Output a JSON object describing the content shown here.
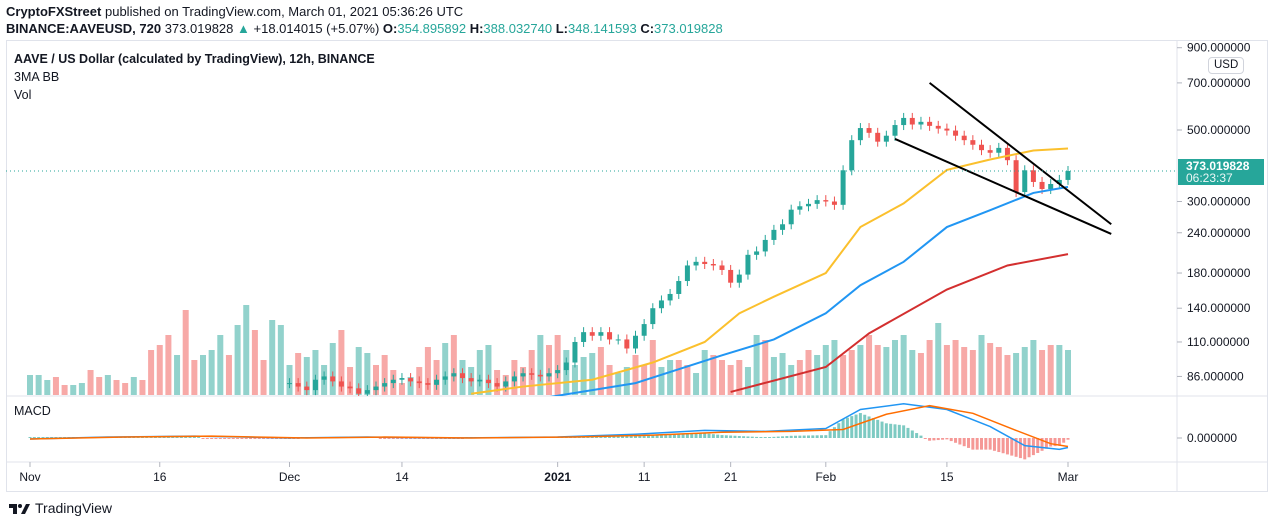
{
  "header": {
    "publisher": "CryptoFXStreet",
    "published_text": "published on TradingView.com, March 01, 2021 05:36:26 UTC",
    "symbol": "BINANCE:AAVEUSD, 720",
    "last": "373.019828",
    "change": "+18.014015 (+5.07%)",
    "o_label": "O:",
    "o": "354.895892",
    "h_label": "H:",
    "h": "388.032740",
    "l_label": "L:",
    "l": "348.141593",
    "c_label": "C:",
    "c": "373.019828"
  },
  "legend": {
    "title": "AAVE / US Dollar (calculated by TradingView), 12h, BINANCE",
    "indicator1": "3MA BB",
    "indicator2": "Vol",
    "macd": "MACD"
  },
  "price_axis": {
    "currency": "USD",
    "last_price": "373.019828",
    "countdown": "06:23:37"
  },
  "footer": {
    "brand": "TradingView"
  },
  "colors": {
    "up": "#26a69a",
    "down": "#ef5350",
    "ma_fast": "#fbc02d",
    "ma_mid": "#2196f3",
    "ma_slow": "#d32f2f",
    "macd": "#2196f3",
    "signal": "#ff6d00",
    "trendline": "#000000"
  },
  "chart_data": {
    "type": "candlestick",
    "scale": "log",
    "ylim": [
      60,
      920
    ],
    "y_ticks": [
      "900.000000",
      "700.000000",
      "500.000000",
      "300.000000",
      "240.000000",
      "180.000000",
      "140.000000",
      "110.000000",
      "86.000000"
    ],
    "y_tick_values": [
      900,
      700,
      500,
      300,
      240,
      180,
      140,
      110,
      86
    ],
    "x_ticks": [
      {
        "label": "Nov",
        "date": "2020-11-01"
      },
      {
        "label": "16",
        "date": "2020-11-16"
      },
      {
        "label": "Dec",
        "date": "2020-12-01"
      },
      {
        "label": "14",
        "date": "2020-12-14"
      },
      {
        "label": "2021",
        "date": "2021-01-01"
      },
      {
        "label": "11",
        "date": "2021-01-11"
      },
      {
        "label": "21",
        "date": "2021-01-21"
      },
      {
        "label": "Feb",
        "date": "2021-02-01"
      },
      {
        "label": "15",
        "date": "2021-02-15"
      },
      {
        "label": "Mar",
        "date": "2021-03-01"
      }
    ],
    "close_start_date": "2020-12-01",
    "daily_close": [
      82,
      80,
      78,
      84,
      86,
      83,
      80,
      79,
      76,
      78,
      80,
      82,
      84,
      85,
      83,
      82,
      81,
      84,
      86,
      88,
      85,
      83,
      84,
      82,
      80,
      83,
      86,
      88,
      87,
      86,
      88,
      90,
      95,
      110,
      118,
      115,
      118,
      112,
      112,
      105,
      115,
      125,
      140,
      148,
      155,
      170,
      190,
      195,
      192,
      190,
      184,
      168,
      178,
      205,
      210,
      228,
      245,
      255,
      283,
      290,
      295,
      303,
      300,
      293,
      375,
      465,
      507,
      490,
      460,
      480,
      518,
      545,
      520,
      530,
      515,
      505,
      498,
      480,
      465,
      450,
      433,
      425,
      440,
      403,
      321,
      375,
      345,
      328,
      340,
      350,
      373
    ],
    "moving_averages": [
      {
        "color_key": "ma_fast",
        "points": [
          [
            "2020-12-22",
            76
          ],
          [
            "2020-12-28",
            80
          ],
          [
            "2021-01-05",
            84
          ],
          [
            "2021-01-12",
            95
          ],
          [
            "2021-01-18",
            110
          ],
          [
            "2021-01-22",
            135
          ],
          [
            "2021-01-26",
            152
          ],
          [
            "2021-02-01",
            180
          ],
          [
            "2021-02-05",
            250
          ],
          [
            "2021-02-10",
            296
          ],
          [
            "2021-02-15",
            376
          ],
          [
            "2021-02-20",
            405
          ],
          [
            "2021-02-25",
            432
          ],
          [
            "2021-03-01",
            438
          ]
        ]
      },
      {
        "color_key": "ma_mid",
        "points": [
          [
            "2020-12-28",
            72
          ],
          [
            "2021-01-10",
            82
          ],
          [
            "2021-01-20",
            100
          ],
          [
            "2021-01-26",
            112
          ],
          [
            "2021-02-01",
            135
          ],
          [
            "2021-02-05",
            165
          ],
          [
            "2021-02-10",
            195
          ],
          [
            "2021-02-15",
            250
          ],
          [
            "2021-02-20",
            282
          ],
          [
            "2021-02-25",
            319
          ],
          [
            "2021-03-01",
            333
          ]
        ]
      },
      {
        "color_key": "ma_slow",
        "points": [
          [
            "2021-01-21",
            77
          ],
          [
            "2021-02-01",
            92
          ],
          [
            "2021-02-06",
            117
          ],
          [
            "2021-02-15",
            160
          ],
          [
            "2021-02-22",
            190
          ],
          [
            "2021-03-01",
            206
          ]
        ]
      }
    ],
    "trendlines": [
      {
        "from": [
          "2021-02-13",
          700
        ],
        "to": [
          "2021-03-06",
          255
        ]
      },
      {
        "from": [
          "2021-02-09",
          469
        ],
        "to": [
          "2021-03-06",
          238
        ]
      }
    ],
    "volume_start_date": "2020-11-01",
    "volume": [
      20,
      20,
      15,
      18,
      10,
      10,
      12,
      25,
      18,
      20,
      15,
      12,
      18,
      15,
      45,
      50,
      60,
      40,
      85,
      35,
      40,
      45,
      60,
      40,
      70,
      90,
      65,
      35,
      75,
      70,
      30,
      42,
      38,
      45,
      30,
      52,
      65,
      28,
      48,
      42,
      30,
      40,
      25,
      12,
      18,
      28,
      48,
      35,
      52,
      60,
      35,
      28,
      45,
      50,
      25,
      20,
      35,
      28,
      45,
      60,
      50,
      60,
      45,
      30,
      38,
      42,
      48,
      30,
      22,
      28,
      40,
      30,
      55,
      28,
      35,
      35,
      30,
      22,
      45,
      40,
      35,
      30,
      35,
      28,
      60,
      55,
      38,
      42,
      30,
      35,
      45,
      40,
      50,
      55,
      40,
      45,
      50,
      60,
      50,
      48,
      55,
      60,
      45,
      42,
      55,
      72,
      50,
      55,
      48,
      45,
      60,
      52,
      48,
      40,
      42,
      48,
      55,
      45,
      50,
      50,
      45
    ],
    "volume_direction": "uuudduuddudduddddudduuuduudduuuduuuudduudddduddduduuuudddddudduuuudduuddduudduudddduuduuudduuuddudduuuuddudddduddduuudduududuuu",
    "macd_zero_label": "0.000000",
    "macd_series": [
      [
        "2020-11-01",
        -1
      ],
      [
        "2020-11-10",
        1
      ],
      [
        "2020-11-20",
        2
      ],
      [
        "2020-12-01",
        0
      ],
      [
        "2020-12-10",
        1
      ],
      [
        "2020-12-20",
        0
      ],
      [
        "2021-01-01",
        1
      ],
      [
        "2021-01-10",
        4
      ],
      [
        "2021-01-18",
        8
      ],
      [
        "2021-01-25",
        7
      ],
      [
        "2021-02-01",
        10
      ],
      [
        "2021-02-05",
        30
      ],
      [
        "2021-02-10",
        36
      ],
      [
        "2021-02-15",
        30
      ],
      [
        "2021-02-20",
        12
      ],
      [
        "2021-02-24",
        -8
      ],
      [
        "2021-02-28",
        -12
      ],
      [
        "2021-03-01",
        -10
      ]
    ],
    "signal_series": [
      [
        "2020-11-01",
        -1
      ],
      [
        "2020-11-12",
        1
      ],
      [
        "2020-11-22",
        2
      ],
      [
        "2020-12-03",
        0
      ],
      [
        "2020-12-12",
        1
      ],
      [
        "2020-12-22",
        0
      ],
      [
        "2021-01-03",
        1
      ],
      [
        "2021-01-12",
        3
      ],
      [
        "2021-01-20",
        6
      ],
      [
        "2021-01-28",
        7
      ],
      [
        "2021-02-03",
        9
      ],
      [
        "2021-02-08",
        25
      ],
      [
        "2021-02-13",
        34
      ],
      [
        "2021-02-18",
        26
      ],
      [
        "2021-02-23",
        8
      ],
      [
        "2021-02-27",
        -6
      ],
      [
        "2021-03-01",
        -9
      ]
    ]
  }
}
